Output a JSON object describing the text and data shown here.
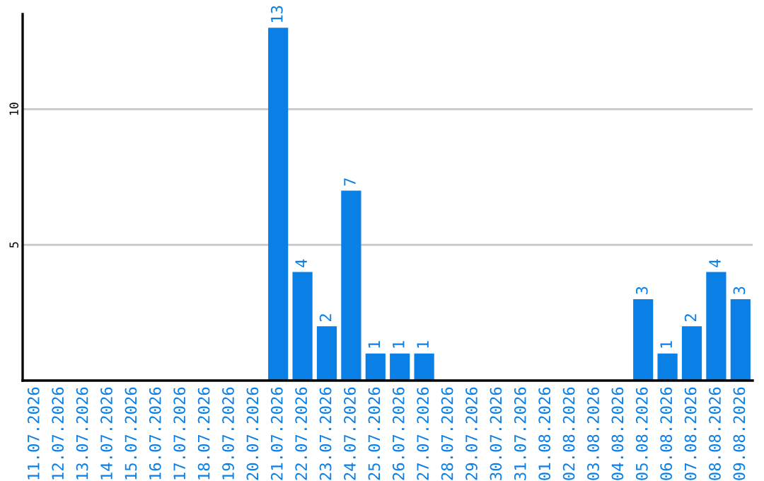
{
  "chart_data": {
    "type": "bar",
    "categories": [
      "11.07.2026",
      "12.07.2026",
      "13.07.2026",
      "14.07.2026",
      "15.07.2026",
      "16.07.2026",
      "17.07.2026",
      "18.07.2026",
      "19.07.2026",
      "20.07.2026",
      "21.07.2026",
      "22.07.2026",
      "23.07.2026",
      "24.07.2026",
      "25.07.2026",
      "26.07.2026",
      "27.07.2026",
      "28.07.2026",
      "29.07.2026",
      "30.07.2026",
      "31.07.2026",
      "01.08.2026",
      "02.08.2026",
      "03.08.2026",
      "04.08.2026",
      "05.08.2026",
      "06.08.2026",
      "07.08.2026",
      "08.08.2026",
      "09.08.2026"
    ],
    "values": [
      0,
      0,
      0,
      0,
      0,
      0,
      0,
      0,
      0,
      0,
      13,
      4,
      2,
      7,
      1,
      1,
      1,
      0,
      0,
      0,
      0,
      0,
      0,
      0,
      0,
      3,
      1,
      2,
      4,
      3
    ],
    "value_labels": [
      null,
      null,
      null,
      null,
      null,
      null,
      null,
      null,
      null,
      null,
      "13",
      "4",
      "2",
      "7",
      "1",
      "1",
      "1",
      null,
      null,
      null,
      null,
      null,
      null,
      null,
      null,
      "3",
      "1",
      "2",
      "4",
      "3"
    ],
    "color": "#0a7fe6",
    "ylim": [
      0,
      13.5
    ],
    "yticks": [
      5,
      10
    ],
    "grid": "y"
  }
}
